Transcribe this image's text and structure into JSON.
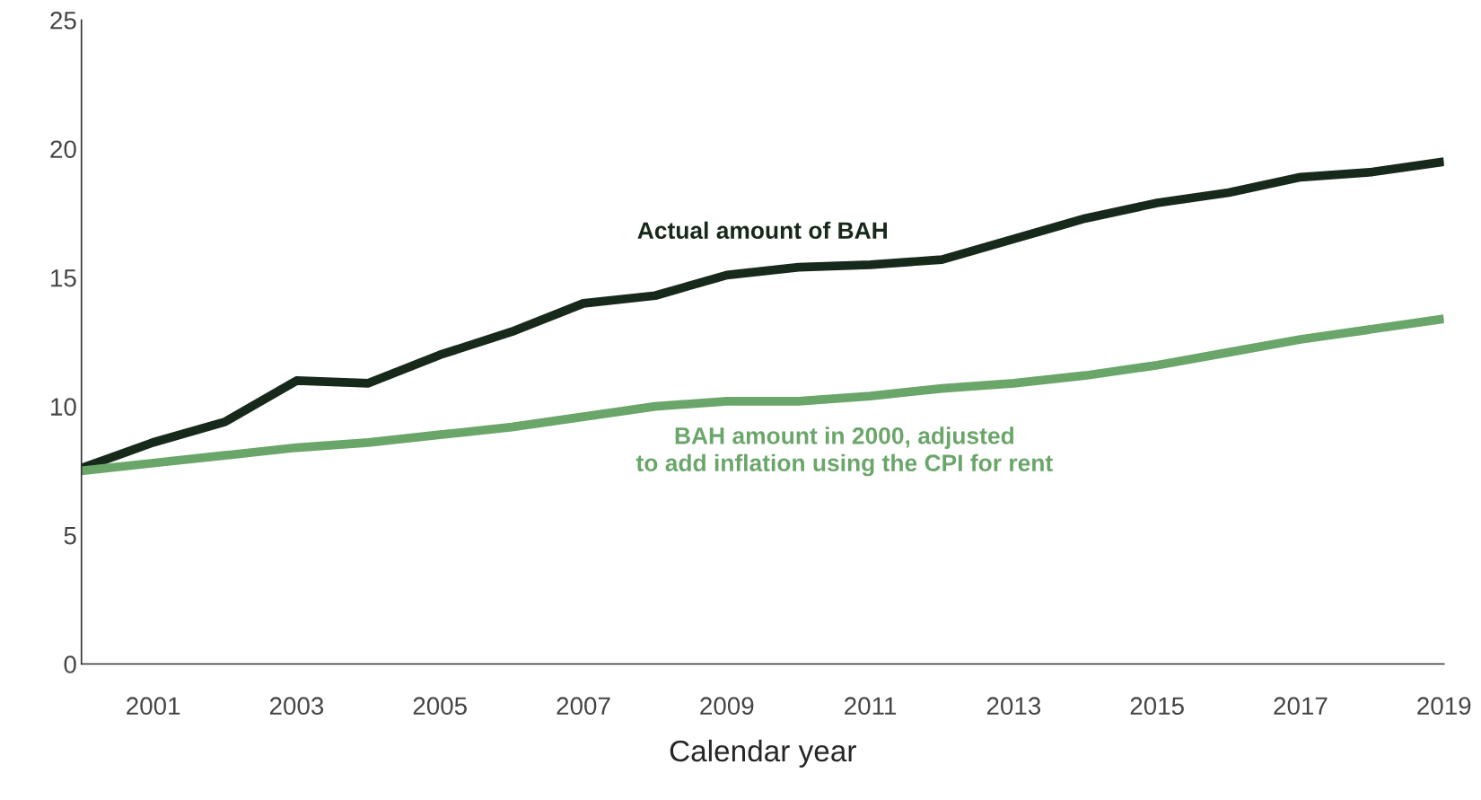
{
  "chart_data": {
    "type": "line",
    "xlabel": "Calendar year",
    "x": [
      2000,
      2001,
      2002,
      2003,
      2004,
      2005,
      2006,
      2007,
      2008,
      2009,
      2010,
      2011,
      2012,
      2013,
      2014,
      2015,
      2016,
      2017,
      2018,
      2019
    ],
    "series": [
      {
        "name": "Actual amount of BAH",
        "color": "#17291a",
        "values": [
          7.6,
          8.6,
          9.4,
          11.0,
          10.9,
          12.0,
          12.9,
          14.0,
          14.3,
          15.1,
          15.4,
          15.5,
          15.7,
          16.5,
          17.3,
          17.9,
          18.3,
          18.9,
          19.1,
          19.5
        ]
      },
      {
        "name": "BAH amount in 2000, adjusted\nto add inflation using the CPI for rent",
        "color": "#6aa66a",
        "values": [
          7.5,
          7.8,
          8.1,
          8.4,
          8.6,
          8.9,
          9.2,
          9.6,
          10.0,
          10.2,
          10.2,
          10.4,
          10.7,
          10.9,
          11.2,
          11.6,
          12.1,
          12.6,
          13.0,
          13.4
        ]
      }
    ],
    "xlim": [
      2000,
      2019
    ],
    "xticks": [
      2001,
      2003,
      2005,
      2007,
      2009,
      2011,
      2013,
      2015,
      2017,
      2019
    ],
    "ylim": [
      0,
      25
    ],
    "yticks": [
      0,
      5,
      10,
      15,
      20,
      25
    ],
    "grid": false,
    "legend": false,
    "marker": "none",
    "line_style": "solid"
  }
}
